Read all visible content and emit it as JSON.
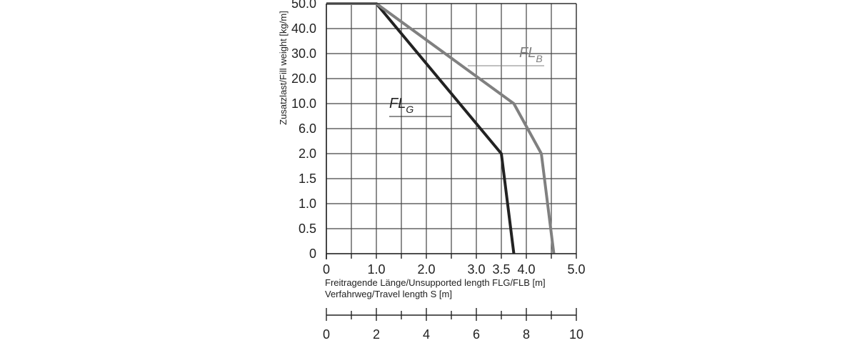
{
  "chart_data": {
    "type": "line",
    "ylabel": "Zusatzlast/Fill weight [kg/m]",
    "xlabel": "Freitragende Länge/Unsupported length FLG/FLB [m]",
    "x2label": "Verfahrweg/Travel length S [m]",
    "x_ticks": [
      "0",
      "1.0",
      "2.0",
      "3.0",
      "3.5",
      "4.0",
      "5.0"
    ],
    "x2_ticks": [
      "0",
      "2",
      "4",
      "6",
      "8",
      "10"
    ],
    "y_ticks": [
      "0",
      "0.5",
      "1.0",
      "1.5",
      "2.0",
      "6.0",
      "10.0",
      "20.0",
      "30.0",
      "40.0",
      "50.0"
    ],
    "xlim": [
      0,
      5
    ],
    "x2lim": [
      0,
      10
    ],
    "grid": true,
    "series": [
      {
        "name": "FLG",
        "label_main": "FL",
        "label_sub": "G",
        "color": "#222222",
        "x": [
          0,
          1.0,
          3.5,
          3.75
        ],
        "y": [
          "50.0",
          "50.0",
          "2.0",
          "0"
        ]
      },
      {
        "name": "FLB",
        "label_main": "FL",
        "label_sub": "B",
        "color": "#808080",
        "x": [
          0,
          1.0,
          3.75,
          4.3,
          4.55
        ],
        "y": [
          "50.0",
          "50.0",
          "10.0",
          "2.0",
          "0"
        ]
      }
    ]
  }
}
